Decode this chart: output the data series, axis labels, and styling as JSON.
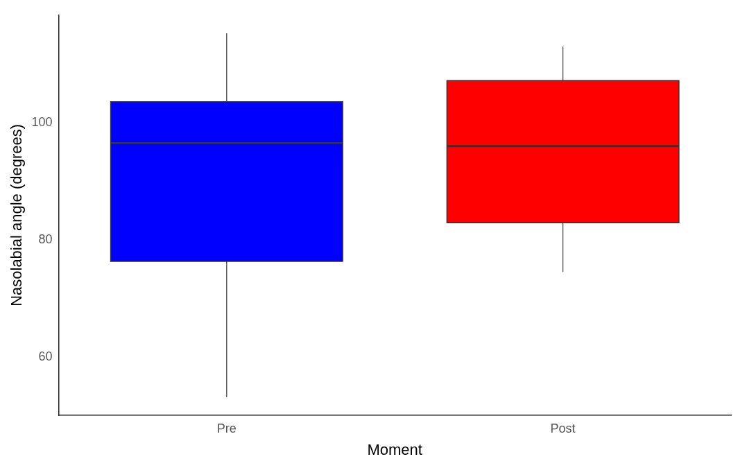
{
  "chart_data": {
    "type": "box",
    "xlabel": "Moment",
    "ylabel": "Nasolabial angle (degrees)",
    "categories": [
      "Pre",
      "Post"
    ],
    "boxes": [
      {
        "low": 53.1,
        "q1": 76.3,
        "median": 96.5,
        "q3": 103.6,
        "high": 115.3
      },
      {
        "low": 74.5,
        "q1": 82.9,
        "median": 96.0,
        "q3": 107.2,
        "high": 113.0
      }
    ],
    "colors": [
      "#0000ff",
      "#ff0000"
    ],
    "ylim": [
      50,
      118.4
    ],
    "yticks": [
      60,
      80,
      100
    ]
  }
}
